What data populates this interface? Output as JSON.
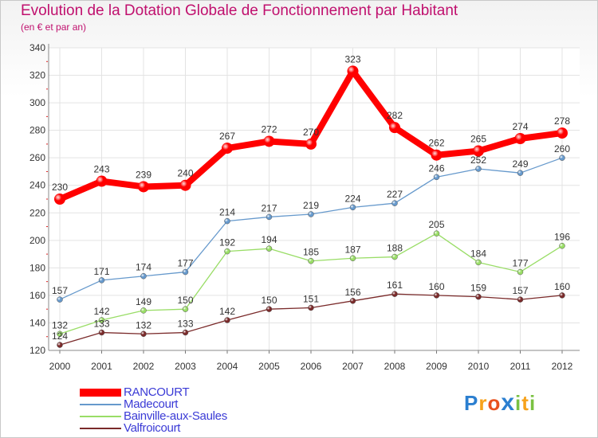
{
  "header": {
    "title": "Evolution de la Dotation Globale de Fonctionnement par Habitant",
    "subtitle": "(en € et par an)"
  },
  "chart_data": {
    "type": "line",
    "title": "Evolution de la Dotation Globale de Fonctionnement par Habitant",
    "subtitle": "(en € et par an)",
    "xlabel": "",
    "ylabel": "",
    "x": [
      "2000",
      "2001",
      "2002",
      "2003",
      "2004",
      "2005",
      "2006",
      "2007",
      "2008",
      "2009",
      "2010",
      "2011",
      "2012"
    ],
    "ylim": [
      120,
      340
    ],
    "yticks": [
      "120",
      "140",
      "160",
      "180",
      "200",
      "220",
      "240",
      "260",
      "280",
      "300",
      "320",
      "340"
    ],
    "grid": true,
    "legend_position": "bottom-left",
    "series": [
      {
        "name": "RANCOURT",
        "color": "#ff0000",
        "values": [
          230,
          243,
          239,
          240,
          267,
          272,
          270,
          323,
          282,
          262,
          265,
          274,
          278
        ],
        "labels": [
          "230",
          "243",
          "239",
          "240",
          "267",
          "272",
          "270",
          "323",
          "282",
          "262",
          "265",
          "274",
          "278"
        ]
      },
      {
        "name": "Madecourt",
        "color": "#6699cc",
        "values": [
          157,
          171,
          174,
          177,
          214,
          217,
          219,
          224,
          227,
          246,
          252,
          249,
          260
        ],
        "labels": [
          "157",
          "171",
          "174",
          "177",
          "214",
          "217",
          "219",
          "224",
          "227",
          "246",
          "252",
          "249",
          "260"
        ]
      },
      {
        "name": "Bainville-aux-Saules",
        "color": "#99dd66",
        "values": [
          132,
          142,
          149,
          150,
          192,
          194,
          185,
          187,
          188,
          205,
          184,
          177,
          196
        ],
        "labels": [
          "132",
          "142",
          "149",
          "150",
          "192",
          "194",
          "185",
          "187",
          "188",
          "205",
          "184",
          "177",
          "196"
        ]
      },
      {
        "name": "Valfroicourt",
        "color": "#7a2a2a",
        "values": [
          124,
          133,
          132,
          133,
          142,
          150,
          151,
          156,
          161,
          160,
          159,
          157,
          160
        ],
        "labels": [
          "124",
          "133",
          "132",
          "133",
          "142",
          "150",
          "151",
          "156",
          "161",
          "160",
          "159",
          "157",
          "160"
        ]
      }
    ]
  },
  "logo": {
    "letters": [
      "P",
      "r",
      "o",
      "x",
      "i",
      "t",
      "i"
    ],
    "colors": [
      "#2b7fd0",
      "#f7a21b",
      "#e8511e",
      "#2b7fd0",
      "#7ac142",
      "#f7a21b",
      "#7ac142"
    ]
  }
}
